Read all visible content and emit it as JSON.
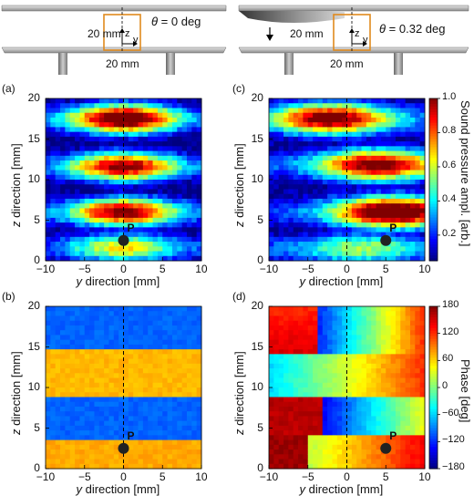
{
  "schematics": {
    "left": {
      "dim_vertical": "20 mm",
      "dim_horizontal": "20 mm",
      "axis_z": "z",
      "axis_y": "y",
      "theta_symbol": "θ",
      "theta_text": " = 0 deg"
    },
    "right": {
      "dim_vertical": "20 mm",
      "dim_horizontal": "20 mm",
      "axis_z": "z",
      "axis_y": "y",
      "theta_symbol": "θ",
      "theta_text": " = 0.32 deg"
    }
  },
  "panels": {
    "a": {
      "label": "(a)"
    },
    "b": {
      "label": "(b)"
    },
    "c": {
      "label": "(c)"
    },
    "d": {
      "label": "(d)"
    }
  },
  "axis": {
    "y_label_italic": "y",
    "y_label_rest": " direction [mm]",
    "z_label_italic": "z",
    "z_label_rest": " direction [mm]",
    "x_ticks": [
      "−10",
      "−5",
      "0",
      "5",
      "10"
    ],
    "z_ticks": [
      "0",
      "5",
      "10",
      "15",
      "20"
    ],
    "point_label": "P"
  },
  "colorbars": {
    "amplitude": {
      "label": "Sound pressure ampl. [arb.]",
      "ticks": [
        "0.2",
        "0.4",
        "0.6",
        "0.8",
        "1.0"
      ],
      "tick_values": [
        0.2,
        0.4,
        0.6,
        0.8,
        1.0
      ],
      "range": [
        0.05,
        1.0
      ],
      "colormap": "jet"
    },
    "phase": {
      "label": "Phase [deg]",
      "ticks": [
        "−180",
        "−120",
        "−60",
        "0",
        "60",
        "120",
        "180"
      ],
      "tick_values": [
        -180,
        -120,
        -60,
        0,
        60,
        120,
        180
      ],
      "range": [
        -180,
        180
      ],
      "colormap": "jet"
    }
  },
  "chart_data": [
    {
      "type": "heatmap",
      "panel": "(a)",
      "description_quantity": "sound pressure amplitude",
      "xlim": [
        -10,
        10
      ],
      "ylim": [
        0,
        20
      ],
      "point_P": {
        "y": 0,
        "z": 2.5
      },
      "dashed_line_y": 0,
      "antinode_bands_z": [
        1.5,
        6,
        11.5,
        17.5
      ],
      "node_lines_z": [
        3.5,
        9,
        14.5
      ]
    },
    {
      "type": "heatmap",
      "panel": "(b)",
      "description_quantity": "phase",
      "xlim": [
        -10,
        10
      ],
      "ylim": [
        0,
        20
      ],
      "point_P": {
        "y": 0,
        "z": 2.5
      },
      "dashed_line_y": 0,
      "phase_bands_deg": [
        {
          "z_from": 0,
          "z_to": 3.5,
          "phase": 60
        },
        {
          "z_from": 3.5,
          "z_to": 9,
          "phase": -100
        },
        {
          "z_from": 9,
          "z_to": 14.5,
          "phase": 60
        },
        {
          "z_from": 14.5,
          "z_to": 20,
          "phase": -100
        }
      ]
    },
    {
      "type": "heatmap",
      "panel": "(c)",
      "description_quantity": "sound pressure amplitude",
      "xlim": [
        -10,
        10
      ],
      "ylim": [
        0,
        20
      ],
      "point_P": {
        "y": 5,
        "z": 2.5
      },
      "dashed_line_y": 0
    },
    {
      "type": "heatmap",
      "panel": "(d)",
      "description_quantity": "phase",
      "xlim": [
        -10,
        10
      ],
      "ylim": [
        0,
        20
      ],
      "point_P": {
        "y": 5,
        "z": 2.5
      },
      "dashed_line_y": 0
    }
  ]
}
